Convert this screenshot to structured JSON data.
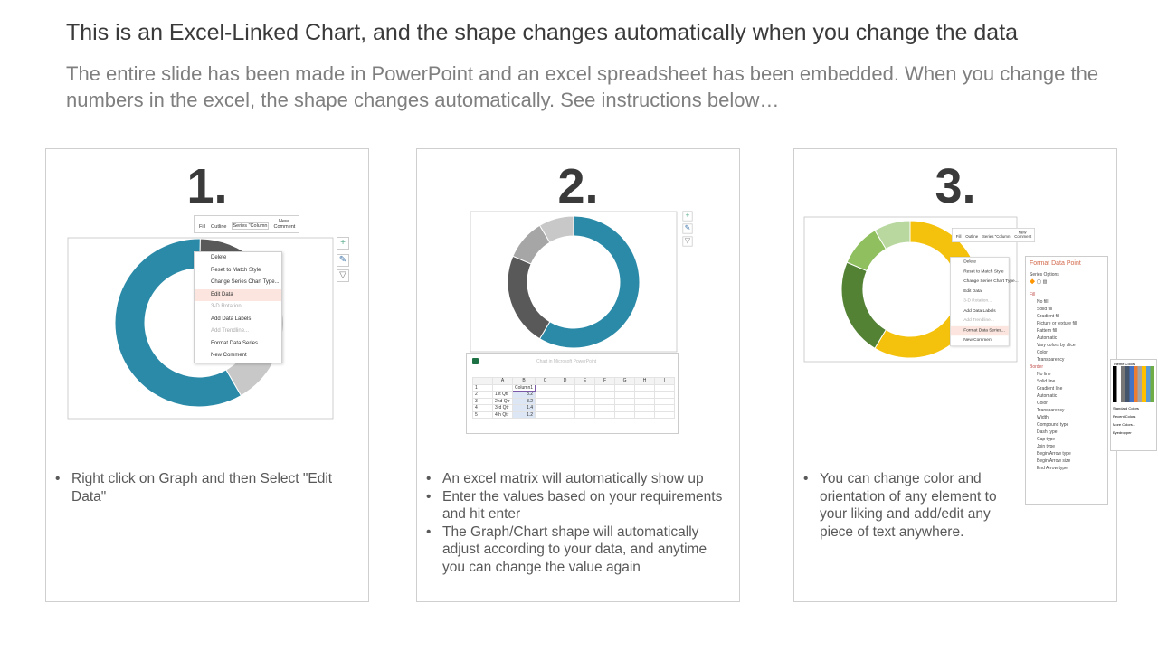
{
  "title": "This is an Excel-Linked Chart, and the shape changes automatically when you change the data",
  "subtitle": "The entire slide has been made in PowerPoint and an excel spreadsheet has been embedded. When you change the numbers in the excel, the shape changes automatically. See instructions below…",
  "steps": [
    {
      "number": "1.",
      "bullets": [
        "Right click on Graph and then Select \"Edit Data\""
      ],
      "colors": [
        "#2a8aa8",
        "#595959",
        "#a6a6a6",
        "#c8c8c8"
      ]
    },
    {
      "number": "2.",
      "bullets": [
        "An excel matrix will automatically  show up",
        "Enter the values based on your requirements and hit enter",
        "The Graph/Chart shape will automatically adjust according to your data, and anytime you can change the value again"
      ],
      "colors": [
        "#2a8aa8",
        "#595959",
        "#a6a6a6",
        "#c8c8c8"
      ]
    },
    {
      "number": "3.",
      "bullets": [
        "You can change color and orientation of any element to your liking and add/edit any piece of text anywhere."
      ],
      "colors": [
        "#f4c20d",
        "#548235",
        "#8fbf5f",
        "#b8d8a0"
      ]
    }
  ],
  "toolbar": {
    "fill": "Fill",
    "outline": "Outline",
    "series": "Series \"Column",
    "new_comment": "New Comment"
  },
  "context_menu": [
    "Delete",
    "Reset to Match Style",
    "Change Series Chart Type...",
    "Edit Data",
    "3-D Rotation...",
    "Add Data Labels",
    "Add Trendline...",
    "Format Data Series...",
    "New Comment"
  ],
  "excel": {
    "title": "Chart in Microsoft PowerPoint",
    "columns": [
      "",
      "A",
      "B",
      "C",
      "D",
      "E",
      "F",
      "G",
      "H",
      "I"
    ],
    "header": "Column1",
    "rows": [
      [
        "1st Qtr",
        "8.2"
      ],
      [
        "2nd Qtr",
        "3.2"
      ],
      [
        "3rd Qtr",
        "1.4"
      ],
      [
        "4th Qtr",
        "1.2"
      ]
    ]
  },
  "format_pane": {
    "title": "Format Data Point",
    "series_options": "Series Options",
    "items": [
      "Fill",
      "No fill",
      "Solid fill",
      "Gradient fill",
      "Picture or texture fill",
      "Pattern fill",
      "Automatic",
      "Vary colors by slice",
      "Color",
      "Transparency",
      "Border",
      "No line",
      "Solid line",
      "Gradient line",
      "Automatic",
      "Color",
      "Transparency",
      "Width",
      "Compound type",
      "Dash type",
      "Cap type",
      "Join type",
      "Begin Arrow type",
      "Begin Arrow size",
      "End Arrow type"
    ]
  },
  "palette": {
    "theme": "Theme Colors",
    "standard": "Standard Colors",
    "recent": "Recent Colors",
    "more": "More Colors...",
    "eyedropper": "Eyedropper"
  }
}
